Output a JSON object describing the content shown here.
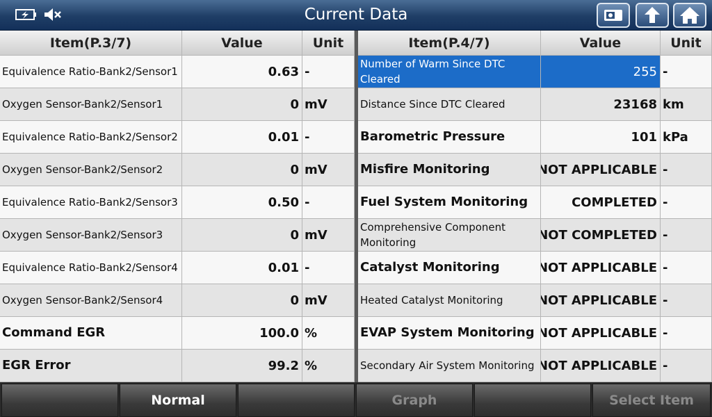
{
  "header": {
    "title": "Current Data"
  },
  "left_table": {
    "headers": [
      "Item(P.3/7)",
      "Value",
      "Unit"
    ],
    "rows": [
      [
        "Equivalence Ratio-Bank2/Sensor1",
        "0.63",
        "-"
      ],
      [
        "Oxygen Sensor-Bank2/Sensor1",
        "0",
        "mV"
      ],
      [
        "Equivalence Ratio-Bank2/Sensor2",
        "0.01",
        "-"
      ],
      [
        "Oxygen Sensor-Bank2/Sensor2",
        "0",
        "mV"
      ],
      [
        "Equivalence Ratio-Bank2/Sensor3",
        "0.50",
        "-"
      ],
      [
        "Oxygen Sensor-Bank2/Sensor3",
        "0",
        "mV"
      ],
      [
        "Equivalence Ratio-Bank2/Sensor4",
        "0.01",
        "-"
      ],
      [
        "Oxygen Sensor-Bank2/Sensor4",
        "0",
        "mV"
      ],
      [
        "Command EGR",
        "100.0",
        "%"
      ],
      [
        "EGR Error",
        "99.2",
        "%"
      ]
    ]
  },
  "right_table": {
    "headers": [
      "Item(P.4/7)",
      "Value",
      "Unit"
    ],
    "rows": [
      [
        "Number of Warm Since DTC Cleared",
        "255",
        "-"
      ],
      [
        "Distance Since DTC Cleared",
        "23168",
        "km"
      ],
      [
        "Barometric Pressure",
        "101",
        "kPa"
      ],
      [
        "Misfire Monitoring",
        "NOT APPLICABLE",
        "-"
      ],
      [
        "Fuel System Monitoring",
        "COMPLETED",
        "-"
      ],
      [
        "Comprehensive Component Monitoring",
        "NOT COMPLETED",
        "-"
      ],
      [
        "Catalyst Monitoring",
        "NOT APPLICABLE",
        "-"
      ],
      [
        "Heated Catalyst Monitoring",
        "NOT APPLICABLE",
        "-"
      ],
      [
        "EVAP System Monitoring",
        "NOT APPLICABLE",
        "-"
      ],
      [
        "Secondary Air System Monitoring",
        "NOT APPLICABLE",
        "-"
      ]
    ]
  },
  "toolbar": {
    "normal": "Normal",
    "graph": "Graph",
    "select_item": "Select Item"
  }
}
